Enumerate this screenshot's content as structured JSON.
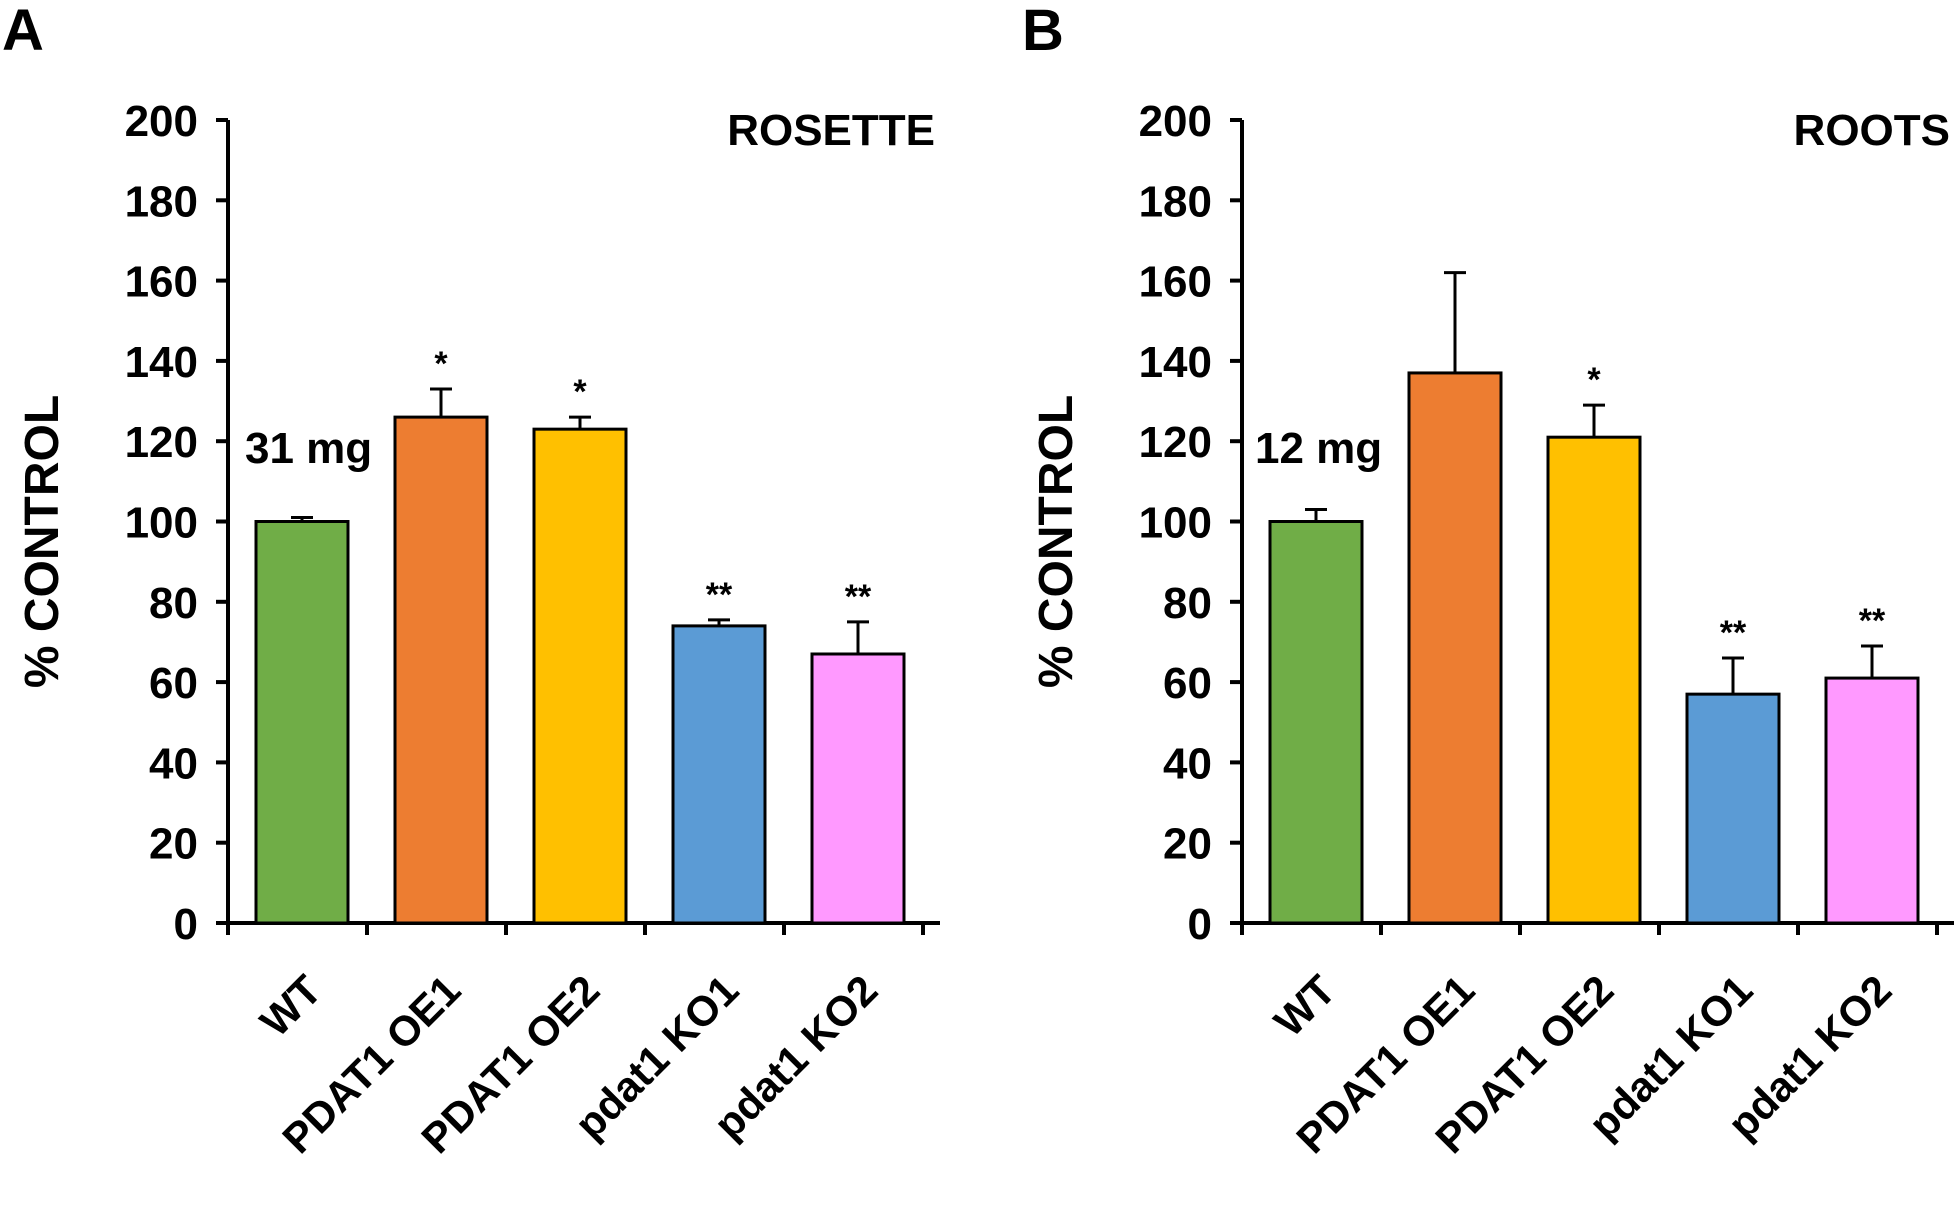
{
  "chart_data": [
    {
      "type": "bar",
      "panel": "A",
      "title": "ROSETTE",
      "ylabel": "% CONTROL",
      "xlabel": "",
      "ylim": [
        0,
        200
      ],
      "yticks": [
        0,
        20,
        40,
        60,
        80,
        100,
        120,
        140,
        160,
        180,
        200
      ],
      "categories": [
        "WT",
        "PDAT1 OE1",
        "PDAT1 OE2",
        "pdat1 KO1",
        "pdat1 KO2"
      ],
      "values": [
        100,
        126,
        123,
        74,
        67
      ],
      "errors": [
        1,
        7,
        3,
        1.5,
        8
      ],
      "significance": [
        "",
        "*",
        "*",
        "**",
        "**"
      ],
      "colors": [
        "#70ad47",
        "#ed7d31",
        "#ffc000",
        "#5b9bd5",
        "#ff99ff"
      ],
      "annotation": "31 mg"
    },
    {
      "type": "bar",
      "panel": "B",
      "title": "ROOTS",
      "ylabel": "% CONTROL",
      "xlabel": "",
      "ylim": [
        0,
        200
      ],
      "yticks": [
        0,
        20,
        40,
        60,
        80,
        100,
        120,
        140,
        160,
        180,
        200
      ],
      "categories": [
        "WT",
        "PDAT1 OE1",
        "PDAT1 OE2",
        "pdat1 KO1",
        "pdat1 KO2"
      ],
      "values": [
        100,
        137,
        121,
        57,
        61
      ],
      "errors": [
        3,
        25,
        8,
        9,
        8
      ],
      "significance": [
        "",
        "",
        "*",
        "**",
        "**"
      ],
      "colors": [
        "#70ad47",
        "#ed7d31",
        "#ffc000",
        "#5b9bd5",
        "#ff99ff"
      ],
      "annotation": "12 mg"
    }
  ]
}
